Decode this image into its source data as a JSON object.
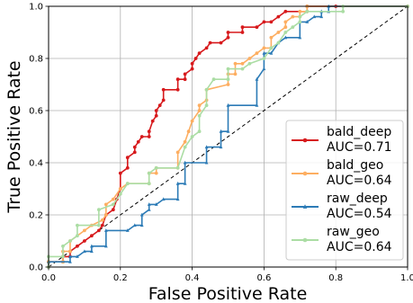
{
  "chart_data": {
    "type": "line",
    "title": "",
    "xlabel": "False Positive Rate",
    "ylabel": "True Positive Rate",
    "xlim": [
      0.0,
      1.0
    ],
    "ylim": [
      0.0,
      1.0
    ],
    "x_ticks": [
      "0.0",
      "0.2",
      "0.4",
      "0.6",
      "0.8",
      "1.0"
    ],
    "y_ticks": [
      "0.0",
      "0.2",
      "0.4",
      "0.6",
      "0.8",
      "1.0"
    ],
    "grid": true,
    "legend_position": "lower-right",
    "series": [
      {
        "name": "bald_deep",
        "auc_label": "AUC=0.71",
        "color": "#d7191c",
        "marker": "circle",
        "points": [
          [
            0.0,
            0.0
          ],
          [
            0.0,
            0.02
          ],
          [
            0.04,
            0.02
          ],
          [
            0.04,
            0.04
          ],
          [
            0.06,
            0.04
          ],
          [
            0.06,
            0.06
          ],
          [
            0.08,
            0.08
          ],
          [
            0.1,
            0.1
          ],
          [
            0.12,
            0.12
          ],
          [
            0.14,
            0.14
          ],
          [
            0.15,
            0.16
          ],
          [
            0.16,
            0.2
          ],
          [
            0.18,
            0.22
          ],
          [
            0.19,
            0.26
          ],
          [
            0.2,
            0.3
          ],
          [
            0.2,
            0.36
          ],
          [
            0.22,
            0.38
          ],
          [
            0.22,
            0.42
          ],
          [
            0.24,
            0.44
          ],
          [
            0.24,
            0.46
          ],
          [
            0.25,
            0.48
          ],
          [
            0.26,
            0.5
          ],
          [
            0.28,
            0.5
          ],
          [
            0.28,
            0.52
          ],
          [
            0.29,
            0.56
          ],
          [
            0.3,
            0.58
          ],
          [
            0.3,
            0.6
          ],
          [
            0.31,
            0.62
          ],
          [
            0.32,
            0.64
          ],
          [
            0.32,
            0.68
          ],
          [
            0.36,
            0.68
          ],
          [
            0.36,
            0.72
          ],
          [
            0.38,
            0.72
          ],
          [
            0.38,
            0.74
          ],
          [
            0.4,
            0.76
          ],
          [
            0.4,
            0.78
          ],
          [
            0.41,
            0.8
          ],
          [
            0.42,
            0.82
          ],
          [
            0.44,
            0.84
          ],
          [
            0.45,
            0.86
          ],
          [
            0.48,
            0.86
          ],
          [
            0.5,
            0.88
          ],
          [
            0.5,
            0.9
          ],
          [
            0.54,
            0.9
          ],
          [
            0.54,
            0.92
          ],
          [
            0.58,
            0.92
          ],
          [
            0.6,
            0.94
          ],
          [
            0.62,
            0.94
          ],
          [
            0.64,
            0.96
          ],
          [
            0.66,
            0.98
          ],
          [
            0.72,
            0.98
          ],
          [
            0.72,
            1.0
          ],
          [
            0.8,
            1.0
          ],
          [
            1.0,
            1.0
          ]
        ]
      },
      {
        "name": "bald_geo",
        "auc_label": "AUC=0.64",
        "color": "#fdae61",
        "marker": "circle",
        "points": [
          [
            0.0,
            0.0
          ],
          [
            0.0,
            0.02
          ],
          [
            0.04,
            0.02
          ],
          [
            0.04,
            0.06
          ],
          [
            0.06,
            0.06
          ],
          [
            0.06,
            0.1
          ],
          [
            0.1,
            0.14
          ],
          [
            0.12,
            0.16
          ],
          [
            0.15,
            0.18
          ],
          [
            0.16,
            0.2
          ],
          [
            0.16,
            0.24
          ],
          [
            0.18,
            0.26
          ],
          [
            0.2,
            0.3
          ],
          [
            0.22,
            0.32
          ],
          [
            0.28,
            0.32
          ],
          [
            0.28,
            0.36
          ],
          [
            0.3,
            0.36
          ],
          [
            0.3,
            0.38
          ],
          [
            0.36,
            0.38
          ],
          [
            0.36,
            0.44
          ],
          [
            0.38,
            0.48
          ],
          [
            0.39,
            0.52
          ],
          [
            0.4,
            0.56
          ],
          [
            0.42,
            0.6
          ],
          [
            0.42,
            0.62
          ],
          [
            0.44,
            0.64
          ],
          [
            0.44,
            0.68
          ],
          [
            0.5,
            0.7
          ],
          [
            0.5,
            0.74
          ],
          [
            0.52,
            0.74
          ],
          [
            0.52,
            0.78
          ],
          [
            0.54,
            0.78
          ],
          [
            0.56,
            0.8
          ],
          [
            0.58,
            0.82
          ],
          [
            0.6,
            0.84
          ],
          [
            0.62,
            0.84
          ],
          [
            0.62,
            0.88
          ],
          [
            0.64,
            0.9
          ],
          [
            0.66,
            0.92
          ],
          [
            0.66,
            0.94
          ],
          [
            0.68,
            0.96
          ],
          [
            0.7,
            0.96
          ],
          [
            0.7,
            0.98
          ],
          [
            0.72,
            0.98
          ],
          [
            0.72,
            1.0
          ],
          [
            1.0,
            1.0
          ]
        ]
      },
      {
        "name": "raw_deep",
        "auc_label": "AUC=0.54",
        "color": "#2c7bb6",
        "marker": "triangle",
        "points": [
          [
            0.0,
            0.0
          ],
          [
            0.0,
            0.02
          ],
          [
            0.06,
            0.02
          ],
          [
            0.06,
            0.04
          ],
          [
            0.08,
            0.04
          ],
          [
            0.1,
            0.06
          ],
          [
            0.12,
            0.06
          ],
          [
            0.12,
            0.08
          ],
          [
            0.16,
            0.08
          ],
          [
            0.16,
            0.14
          ],
          [
            0.22,
            0.14
          ],
          [
            0.24,
            0.16
          ],
          [
            0.26,
            0.16
          ],
          [
            0.26,
            0.2
          ],
          [
            0.28,
            0.22
          ],
          [
            0.28,
            0.24
          ],
          [
            0.3,
            0.24
          ],
          [
            0.32,
            0.26
          ],
          [
            0.36,
            0.26
          ],
          [
            0.36,
            0.32
          ],
          [
            0.38,
            0.32
          ],
          [
            0.38,
            0.4
          ],
          [
            0.44,
            0.4
          ],
          [
            0.44,
            0.46
          ],
          [
            0.48,
            0.46
          ],
          [
            0.48,
            0.52
          ],
          [
            0.5,
            0.52
          ],
          [
            0.5,
            0.62
          ],
          [
            0.58,
            0.62
          ],
          [
            0.58,
            0.72
          ],
          [
            0.6,
            0.76
          ],
          [
            0.6,
            0.82
          ],
          [
            0.62,
            0.82
          ],
          [
            0.64,
            0.86
          ],
          [
            0.66,
            0.88
          ],
          [
            0.7,
            0.88
          ],
          [
            0.7,
            0.94
          ],
          [
            0.72,
            0.94
          ],
          [
            0.74,
            0.96
          ],
          [
            0.76,
            0.96
          ],
          [
            0.76,
            0.98
          ],
          [
            0.78,
            0.98
          ],
          [
            0.78,
            1.0
          ],
          [
            1.0,
            1.0
          ]
        ]
      },
      {
        "name": "raw_geo",
        "auc_label": "AUC=0.64",
        "color": "#abdda4",
        "marker": "circle",
        "points": [
          [
            0.0,
            0.0
          ],
          [
            0.0,
            0.04
          ],
          [
            0.04,
            0.04
          ],
          [
            0.04,
            0.08
          ],
          [
            0.06,
            0.1
          ],
          [
            0.08,
            0.12
          ],
          [
            0.08,
            0.16
          ],
          [
            0.14,
            0.16
          ],
          [
            0.14,
            0.22
          ],
          [
            0.18,
            0.24
          ],
          [
            0.2,
            0.28
          ],
          [
            0.22,
            0.32
          ],
          [
            0.28,
            0.32
          ],
          [
            0.28,
            0.36
          ],
          [
            0.3,
            0.38
          ],
          [
            0.36,
            0.38
          ],
          [
            0.38,
            0.46
          ],
          [
            0.4,
            0.5
          ],
          [
            0.42,
            0.52
          ],
          [
            0.42,
            0.58
          ],
          [
            0.44,
            0.62
          ],
          [
            0.44,
            0.68
          ],
          [
            0.46,
            0.72
          ],
          [
            0.5,
            0.72
          ],
          [
            0.5,
            0.76
          ],
          [
            0.54,
            0.76
          ],
          [
            0.56,
            0.78
          ],
          [
            0.6,
            0.8
          ],
          [
            0.62,
            0.84
          ],
          [
            0.64,
            0.86
          ],
          [
            0.66,
            0.9
          ],
          [
            0.68,
            0.92
          ],
          [
            0.7,
            0.94
          ],
          [
            0.7,
            0.96
          ],
          [
            0.72,
            0.98
          ],
          [
            0.82,
            0.98
          ],
          [
            0.82,
            1.0
          ],
          [
            1.0,
            1.0
          ]
        ]
      }
    ],
    "diagonal_reference": [
      [
        0.0,
        0.0
      ],
      [
        1.0,
        1.0
      ]
    ]
  }
}
